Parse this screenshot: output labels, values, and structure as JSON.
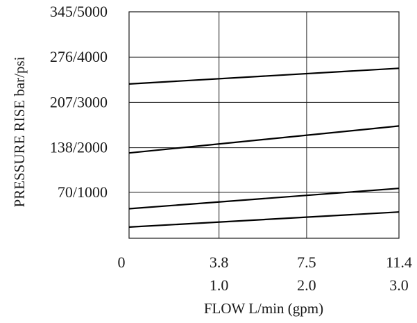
{
  "chart_data": {
    "type": "line",
    "xlabel": "FLOW L/min (gpm)",
    "ylabel": "PRESSURE RISE  bar/psi",
    "xlim": [
      0,
      11.4
    ],
    "ylim": [
      0,
      345
    ],
    "x_ticks": [
      {
        "value": 0,
        "lpm": "0",
        "gpm": ""
      },
      {
        "value": 3.8,
        "lpm": "3.8",
        "gpm": "1.0"
      },
      {
        "value": 7.5,
        "lpm": "7.5",
        "gpm": "2.0"
      },
      {
        "value": 11.4,
        "lpm": "11.4",
        "gpm": "3.0"
      }
    ],
    "y_ticks": [
      {
        "value": 70,
        "label": "70/1000"
      },
      {
        "value": 138,
        "label": "138/2000"
      },
      {
        "value": 207,
        "label": "207/3000"
      },
      {
        "value": 276,
        "label": "276/4000"
      },
      {
        "value": 345,
        "label": "345/5000"
      }
    ],
    "grid": true,
    "series": [
      {
        "x": [
          0,
          11.4
        ],
        "y": [
          235,
          259
        ]
      },
      {
        "x": [
          0,
          11.4
        ],
        "y": [
          130,
          171
        ]
      },
      {
        "x": [
          0,
          11.4
        ],
        "y": [
          45,
          76
        ]
      },
      {
        "x": [
          0,
          11.4
        ],
        "y": [
          17,
          40
        ]
      }
    ]
  }
}
